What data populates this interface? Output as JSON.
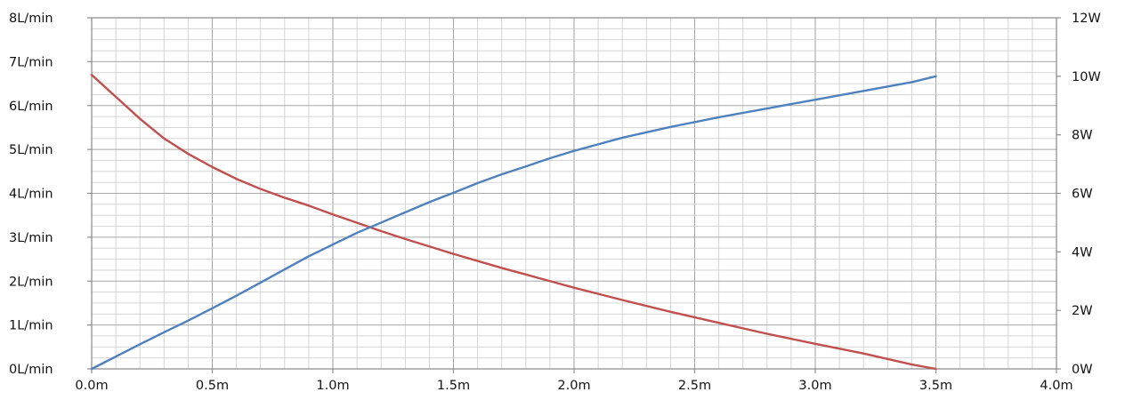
{
  "chart_data": {
    "type": "line",
    "title": "",
    "xlabel": "",
    "ylabel": "",
    "y2label": "",
    "xlim": [
      0,
      4
    ],
    "ylim": [
      0,
      8
    ],
    "y2lim": [
      0,
      12
    ],
    "x_ticks": [
      "0.0m",
      "0.5m",
      "1.0m",
      "1.5m",
      "2.0m",
      "2.5m",
      "3.0m",
      "3.5m",
      "4.0m"
    ],
    "y_ticks": [
      "0L/min",
      "1L/min",
      "2L/min",
      "3L/min",
      "4L/min",
      "5L/min",
      "6L/min",
      "7L/min",
      "8L/min"
    ],
    "y2_ticks": [
      "0W",
      "2W",
      "4W",
      "6W",
      "8W",
      "10W",
      "12W"
    ],
    "grid": true,
    "legend": "none",
    "series": [
      {
        "axis": "left",
        "color": "#c0504d",
        "x": [
          0.0,
          0.1,
          0.2,
          0.3,
          0.4,
          0.5,
          0.6,
          0.7,
          0.8,
          0.9,
          1.0,
          1.1,
          1.2,
          1.3,
          1.4,
          1.5,
          1.6,
          1.7,
          1.8,
          1.9,
          2.0,
          2.2,
          2.4,
          2.6,
          2.8,
          3.0,
          3.2,
          3.4,
          3.5
        ],
        "values": [
          6.7,
          6.2,
          5.7,
          5.25,
          4.9,
          4.6,
          4.33,
          4.1,
          3.9,
          3.72,
          3.52,
          3.33,
          3.14,
          2.96,
          2.79,
          2.62,
          2.46,
          2.3,
          2.15,
          2.0,
          1.85,
          1.57,
          1.3,
          1.05,
          0.8,
          0.57,
          0.35,
          0.1,
          0.0
        ]
      },
      {
        "axis": "right",
        "color": "#4f81bd",
        "x": [
          0.0,
          0.1,
          0.2,
          0.3,
          0.4,
          0.5,
          0.6,
          0.7,
          0.8,
          0.9,
          1.0,
          1.1,
          1.2,
          1.3,
          1.4,
          1.5,
          1.6,
          1.7,
          1.8,
          1.9,
          2.0,
          2.2,
          2.4,
          2.6,
          2.8,
          3.0,
          3.2,
          3.4,
          3.5
        ],
        "values": [
          0.0,
          0.42,
          0.84,
          1.25,
          1.65,
          2.07,
          2.5,
          2.95,
          3.4,
          3.85,
          4.25,
          4.65,
          5.0,
          5.35,
          5.7,
          6.02,
          6.35,
          6.65,
          6.92,
          7.2,
          7.45,
          7.9,
          8.27,
          8.6,
          8.9,
          9.2,
          9.5,
          9.8,
          10.0
        ]
      }
    ]
  }
}
